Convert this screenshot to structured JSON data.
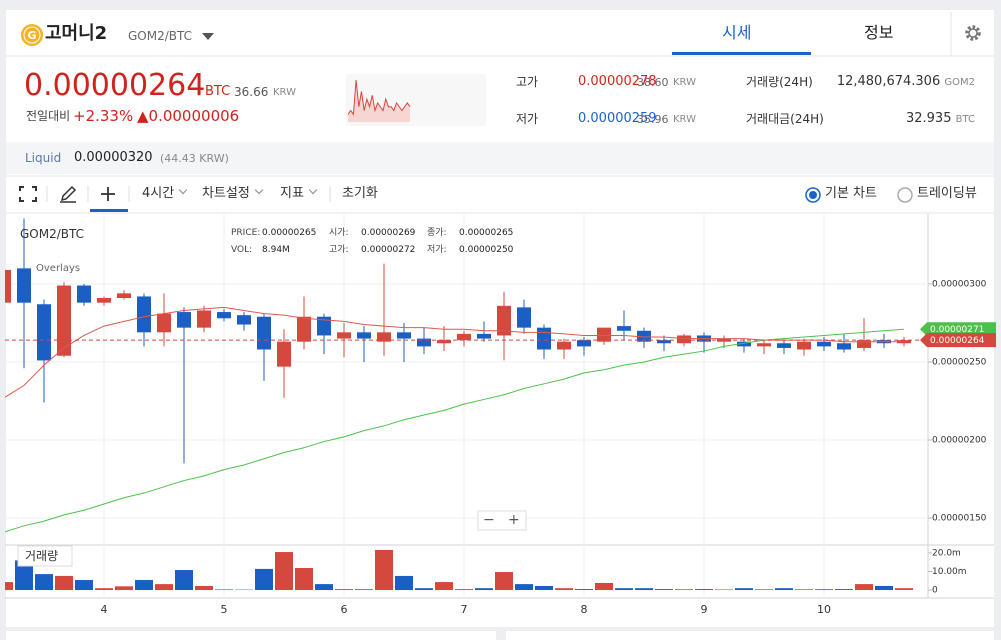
{
  "header": {
    "logo": "G",
    "coin": "고머니2",
    "pair": "GOM2/BTC",
    "tabs": [
      "시세",
      "정보"
    ]
  },
  "price": {
    "value": "0.00000264",
    "unit": "BTC",
    "krw": "36.66",
    "krw_unit": "KRW",
    "change_label": "전일대비",
    "change_pct": "+2.33%",
    "change": "▲0.00000006",
    "sparkline": [
      2,
      3,
      2,
      11,
      4,
      8,
      3,
      6,
      4,
      7,
      3,
      5,
      4,
      3,
      6,
      4,
      4,
      3,
      5,
      4,
      3,
      4,
      5,
      4
    ]
  },
  "stats": [
    {
      "label": "고가",
      "value": "0.00000278",
      "krw": "38.60",
      "unit": "KRW"
    },
    {
      "label": "저가",
      "value": "0.00000259",
      "krw": "35.96",
      "unit": "KRW"
    }
  ],
  "totals": [
    {
      "label": "거래량(24H)",
      "value": "12,480,674.306",
      "unit": "GOM2"
    },
    {
      "label": "거래대금(24H)",
      "value": "32.935",
      "unit": "BTC"
    }
  ],
  "liquid": {
    "label": "Liquid",
    "value": "0.00000320",
    "krw": "(44.43 KRW)"
  },
  "toolbar": {
    "items": [
      "4시간",
      "차트설정",
      "지표",
      "초기화"
    ],
    "modes": [
      "기본 차트",
      "트레이딩뷰"
    ]
  },
  "chart_data": {
    "type": "candlestick",
    "title": "GOM2/BTC",
    "overlays": "Overlays",
    "zoom": [
      "−",
      "+"
    ],
    "info": [
      [
        "PRICE:",
        "0.00000265"
      ],
      [
        "시가:",
        "0.00000269"
      ],
      [
        "종가:",
        "0.00000265"
      ],
      [
        "VOL:",
        "8.94M"
      ],
      [
        "고가:",
        "0.00000272"
      ],
      [
        "저가:",
        "0.00000250"
      ]
    ],
    "categories": [
      null,
      null,
      null,
      null,
      null,
      "4",
      null,
      null,
      null,
      null,
      null,
      "5",
      null,
      null,
      null,
      null,
      null,
      "6",
      null,
      null,
      null,
      null,
      null,
      "7",
      null,
      null,
      null,
      null,
      null,
      "8",
      null,
      null,
      null,
      null,
      null,
      "9",
      null,
      null,
      null,
      null,
      null,
      "10",
      null,
      null,
      null,
      null
    ],
    "open": [
      2.88e-06,
      3.1e-06,
      2.87e-06,
      2.54e-06,
      2.99e-06,
      2.88e-06,
      2.91e-06,
      2.92e-06,
      2.69e-06,
      2.82e-06,
      2.72e-06,
      2.82e-06,
      2.8e-06,
      2.79e-06,
      2.47e-06,
      2.63e-06,
      2.79e-06,
      2.65e-06,
      2.69e-06,
      2.63e-06,
      2.69e-06,
      2.65e-06,
      2.62e-06,
      2.64e-06,
      2.68e-06,
      2.67e-06,
      2.85e-06,
      2.72e-06,
      2.58e-06,
      2.64e-06,
      2.63e-06,
      2.73e-06,
      2.7e-06,
      2.64e-06,
      2.62e-06,
      2.67e-06,
      2.63e-06,
      2.63e-06,
      2.6e-06,
      2.62e-06,
      2.58e-06,
      2.63e-06,
      2.62e-06,
      2.59e-06,
      2.64e-06,
      2.62e-06
    ],
    "high": [
      3.11e-06,
      3.42e-06,
      2.9e-06,
      3.01e-06,
      3e-06,
      2.92e-06,
      2.96e-06,
      2.94e-06,
      2.94e-06,
      2.85e-06,
      2.86e-06,
      2.84e-06,
      2.82e-06,
      2.81e-06,
      2.71e-06,
      2.92e-06,
      2.81e-06,
      2.75e-06,
      2.73e-06,
      3.13e-06,
      2.75e-06,
      2.72e-06,
      2.73e-06,
      2.7e-06,
      2.76e-06,
      2.95e-06,
      2.9e-06,
      2.74e-06,
      2.65e-06,
      2.66e-06,
      2.72e-06,
      2.83e-06,
      2.72e-06,
      2.67e-06,
      2.68e-06,
      2.69e-06,
      2.67e-06,
      2.65e-06,
      2.64e-06,
      2.64e-06,
      2.65e-06,
      2.66e-06,
      2.68e-06,
      2.78e-06,
      2.68e-06,
      2.66e-06
    ],
    "low": [
      2.86e-06,
      2.46e-06,
      2.24e-06,
      2.53e-06,
      2.86e-06,
      2.86e-06,
      2.9e-06,
      2.6e-06,
      2.6e-06,
      1.85e-06,
      2.69e-06,
      2.76e-06,
      2.7e-06,
      2.38e-06,
      2.27e-06,
      2.58e-06,
      2.55e-06,
      2.53e-06,
      2.5e-06,
      2.54e-06,
      2.5e-06,
      2.55e-06,
      2.57e-06,
      2.6e-06,
      2.63e-06,
      2.51e-06,
      2.68e-06,
      2.52e-06,
      2.52e-06,
      2.54e-06,
      2.61e-06,
      2.64e-06,
      2.59e-06,
      2.57e-06,
      2.6e-06,
      2.56e-06,
      2.59e-06,
      2.56e-06,
      2.55e-06,
      2.55e-06,
      2.54e-06,
      2.57e-06,
      2.56e-06,
      2.57e-06,
      2.59e-06,
      2.6e-06
    ],
    "close": [
      3.09e-06,
      2.88e-06,
      2.51e-06,
      2.99e-06,
      2.88e-06,
      2.91e-06,
      2.94e-06,
      2.69e-06,
      2.81e-06,
      2.72e-06,
      2.83e-06,
      2.78e-06,
      2.74e-06,
      2.58e-06,
      2.63e-06,
      2.79e-06,
      2.67e-06,
      2.69e-06,
      2.65e-06,
      2.69e-06,
      2.65e-06,
      2.6e-06,
      2.64e-06,
      2.68e-06,
      2.65e-06,
      2.86e-06,
      2.72e-06,
      2.58e-06,
      2.63e-06,
      2.6e-06,
      2.72e-06,
      2.7e-06,
      2.63e-06,
      2.62e-06,
      2.67e-06,
      2.63e-06,
      2.65e-06,
      2.6e-06,
      2.62e-06,
      2.59e-06,
      2.63e-06,
      2.6e-06,
      2.58e-06,
      2.64e-06,
      2.62e-06,
      2.64e-06
    ],
    "up_color": "#d4483e",
    "down_color": "#1b5fc4",
    "ylim": [
      1.327e-06,
      3.442e-06
    ],
    "yticks": [
      {
        "value": 3e-06,
        "label": "0.00000300"
      },
      {
        "value": 2.5e-06,
        "label": "0.00000250"
      },
      {
        "value": 2e-06,
        "label": "0.00000200"
      },
      {
        "value": 1.5e-06,
        "label": "0.00000150"
      }
    ],
    "grid": true,
    "ma": [
      {
        "color": "#e0574c",
        "values": [
          2.27e-06,
          2.35e-06,
          2.48e-06,
          2.59e-06,
          2.67e-06,
          2.73e-06,
          2.76e-06,
          2.79e-06,
          2.81e-06,
          2.83e-06,
          2.84e-06,
          2.85e-06,
          2.83e-06,
          2.81e-06,
          2.8e-06,
          2.78e-06,
          2.77e-06,
          2.76e-06,
          2.74e-06,
          2.73e-06,
          2.72e-06,
          2.72e-06,
          2.71e-06,
          2.71e-06,
          2.7e-06,
          2.7e-06,
          2.69e-06,
          2.69e-06,
          2.68e-06,
          2.67e-06,
          2.67e-06,
          2.67e-06,
          2.66e-06,
          2.66e-06,
          2.65e-06,
          2.65e-06,
          2.65e-06,
          2.65e-06,
          2.64e-06,
          2.64e-06,
          2.64e-06,
          2.64e-06,
          2.63e-06,
          2.63e-06,
          2.63e-06,
          2.63e-06
        ]
      },
      {
        "color": "#4cc14a",
        "values": [
          1.41e-06,
          1.45e-06,
          1.48e-06,
          1.52e-06,
          1.55e-06,
          1.59e-06,
          1.63e-06,
          1.66e-06,
          1.7e-06,
          1.74e-06,
          1.77e-06,
          1.81e-06,
          1.84e-06,
          1.88e-06,
          1.92e-06,
          1.95e-06,
          1.99e-06,
          2.02e-06,
          2.06e-06,
          2.09e-06,
          2.13e-06,
          2.16e-06,
          2.19e-06,
          2.23e-06,
          2.26e-06,
          2.29e-06,
          2.33e-06,
          2.36e-06,
          2.39e-06,
          2.43e-06,
          2.45e-06,
          2.48e-06,
          2.5e-06,
          2.53e-06,
          2.55e-06,
          2.57e-06,
          2.6e-06,
          2.62e-06,
          2.64e-06,
          2.65e-06,
          2.66e-06,
          2.67e-06,
          2.68e-06,
          2.69e-06,
          2.7e-06,
          2.71e-06
        ]
      }
    ],
    "price_tags": [
      {
        "value": 2.71e-06,
        "label": "0.00000271",
        "color": "#4cc14a"
      },
      {
        "value": 2.64e-06,
        "label": "0.00000264",
        "color": "#d4483e"
      }
    ],
    "volume": {
      "name": "거래량",
      "values": [
        4.3,
        16,
        8.6,
        7.6,
        5.4,
        1,
        2,
        5.4,
        3.2,
        10.8,
        2.2,
        0.3,
        0.2,
        11.4,
        20.5,
        11.9,
        3.2,
        0.5,
        0.4,
        21.6,
        7.6,
        1,
        4.3,
        0.5,
        1,
        9.7,
        3.2,
        2.2,
        1,
        0.5,
        3.8,
        1,
        1,
        0.5,
        0.4,
        0.5,
        0.3,
        1,
        0.4,
        1,
        0.4,
        0.4,
        0.5,
        3.2,
        2.2,
        1
      ],
      "ylim": [
        -4.3,
        24.3
      ],
      "yticks": [
        {
          "value": 20,
          "label": "20.0m"
        },
        {
          "value": 10,
          "label": "10.00m"
        },
        0
      ]
    }
  }
}
